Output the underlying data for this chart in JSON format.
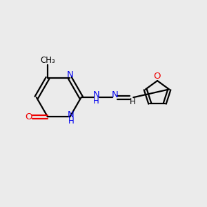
{
  "bg_color": "#ebebeb",
  "bond_color": "#000000",
  "n_color": "#0000ee",
  "o_color": "#ee0000",
  "line_width": 1.6,
  "figsize": [
    3.0,
    3.0
  ],
  "dpi": 100,
  "xlim": [
    0,
    10
  ],
  "ylim": [
    0,
    10
  ]
}
